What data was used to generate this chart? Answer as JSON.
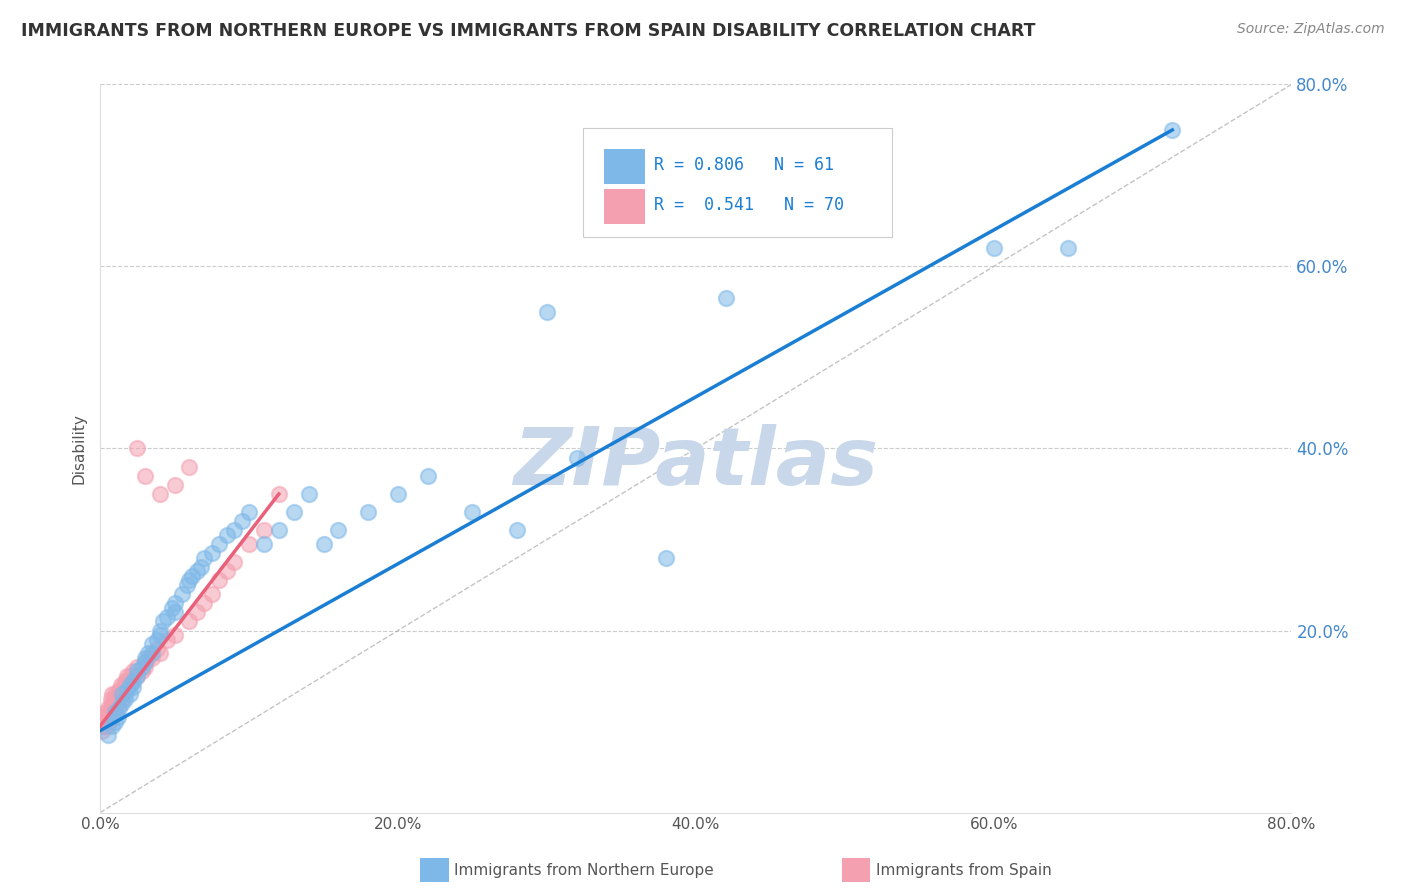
{
  "title": "IMMIGRANTS FROM NORTHERN EUROPE VS IMMIGRANTS FROM SPAIN DISABILITY CORRELATION CHART",
  "source_text": "Source: ZipAtlas.com",
  "ylabel": "Disability",
  "xlim": [
    0,
    0.8
  ],
  "ylim": [
    0,
    0.8
  ],
  "xtick_labels": [
    "0.0%",
    "",
    "20.0%",
    "",
    "40.0%",
    "",
    "60.0%",
    "",
    "80.0%"
  ],
  "xtick_vals": [
    0.0,
    0.1,
    0.2,
    0.3,
    0.4,
    0.5,
    0.6,
    0.7,
    0.8
  ],
  "ytick_labels": [
    "20.0%",
    "40.0%",
    "60.0%",
    "80.0%"
  ],
  "ytick_vals": [
    0.2,
    0.4,
    0.6,
    0.8
  ],
  "blue_R": 0.806,
  "blue_N": 61,
  "pink_R": 0.541,
  "pink_N": 70,
  "blue_color": "#7EB8E8",
  "pink_color": "#F4A0B0",
  "blue_line_color": "#1A7FD4",
  "pink_line_color": "#E8607A",
  "tick_label_color": "#4488CC",
  "watermark": "ZIPatlas",
  "watermark_color": "#C8D8E8",
  "legend_label_blue": "Immigrants from Northern Europe",
  "legend_label_pink": "Immigrants from Spain",
  "blue_scatter_x": [
    0.005,
    0.008,
    0.01,
    0.01,
    0.012,
    0.013,
    0.015,
    0.015,
    0.017,
    0.018,
    0.02,
    0.02,
    0.022,
    0.022,
    0.025,
    0.025,
    0.028,
    0.03,
    0.03,
    0.032,
    0.035,
    0.035,
    0.038,
    0.04,
    0.04,
    0.042,
    0.045,
    0.048,
    0.05,
    0.05,
    0.055,
    0.058,
    0.06,
    0.062,
    0.065,
    0.068,
    0.07,
    0.075,
    0.08,
    0.085,
    0.09,
    0.095,
    0.1,
    0.11,
    0.12,
    0.13,
    0.14,
    0.15,
    0.16,
    0.18,
    0.2,
    0.22,
    0.25,
    0.28,
    0.3,
    0.32,
    0.38,
    0.42,
    0.6,
    0.65,
    0.72
  ],
  "blue_scatter_y": [
    0.085,
    0.095,
    0.1,
    0.11,
    0.105,
    0.115,
    0.12,
    0.13,
    0.125,
    0.135,
    0.13,
    0.14,
    0.138,
    0.145,
    0.15,
    0.155,
    0.16,
    0.165,
    0.17,
    0.175,
    0.175,
    0.185,
    0.19,
    0.195,
    0.2,
    0.21,
    0.215,
    0.225,
    0.22,
    0.23,
    0.24,
    0.25,
    0.255,
    0.26,
    0.265,
    0.27,
    0.28,
    0.285,
    0.295,
    0.305,
    0.31,
    0.32,
    0.33,
    0.295,
    0.31,
    0.33,
    0.35,
    0.295,
    0.31,
    0.33,
    0.35,
    0.37,
    0.33,
    0.31,
    0.55,
    0.39,
    0.28,
    0.565,
    0.62,
    0.62,
    0.75
  ],
  "pink_scatter_x": [
    0.001,
    0.002,
    0.002,
    0.003,
    0.003,
    0.004,
    0.004,
    0.005,
    0.005,
    0.005,
    0.006,
    0.006,
    0.007,
    0.007,
    0.007,
    0.008,
    0.008,
    0.008,
    0.009,
    0.009,
    0.01,
    0.01,
    0.01,
    0.011,
    0.011,
    0.012,
    0.012,
    0.013,
    0.013,
    0.014,
    0.014,
    0.015,
    0.015,
    0.016,
    0.016,
    0.017,
    0.017,
    0.018,
    0.018,
    0.019,
    0.02,
    0.02,
    0.022,
    0.022,
    0.025,
    0.025,
    0.028,
    0.03,
    0.03,
    0.032,
    0.035,
    0.038,
    0.04,
    0.045,
    0.05,
    0.06,
    0.065,
    0.07,
    0.075,
    0.08,
    0.085,
    0.09,
    0.1,
    0.11,
    0.12,
    0.04,
    0.05,
    0.06,
    0.03,
    0.025
  ],
  "pink_scatter_y": [
    0.09,
    0.095,
    0.1,
    0.095,
    0.105,
    0.1,
    0.11,
    0.095,
    0.105,
    0.115,
    0.1,
    0.11,
    0.105,
    0.115,
    0.125,
    0.11,
    0.12,
    0.13,
    0.115,
    0.125,
    0.11,
    0.12,
    0.13,
    0.115,
    0.125,
    0.12,
    0.13,
    0.125,
    0.135,
    0.13,
    0.14,
    0.125,
    0.135,
    0.13,
    0.14,
    0.135,
    0.145,
    0.14,
    0.15,
    0.145,
    0.14,
    0.15,
    0.145,
    0.155,
    0.15,
    0.16,
    0.155,
    0.16,
    0.165,
    0.17,
    0.17,
    0.18,
    0.175,
    0.19,
    0.195,
    0.21,
    0.22,
    0.23,
    0.24,
    0.255,
    0.265,
    0.275,
    0.295,
    0.31,
    0.35,
    0.35,
    0.36,
    0.38,
    0.37,
    0.4
  ],
  "blue_trend_x": [
    0.0,
    0.72
  ],
  "blue_trend_y": [
    0.09,
    0.75
  ],
  "pink_trend_x": [
    0.0,
    0.12
  ],
  "pink_trend_y": [
    0.095,
    0.35
  ],
  "ref_line_x": [
    0.0,
    0.8
  ],
  "ref_line_y": [
    0.0,
    0.8
  ],
  "background_color": "#FFFFFF",
  "grid_color": "#CCCCCC",
  "title_color": "#333333",
  "axis_label_color": "#555555"
}
